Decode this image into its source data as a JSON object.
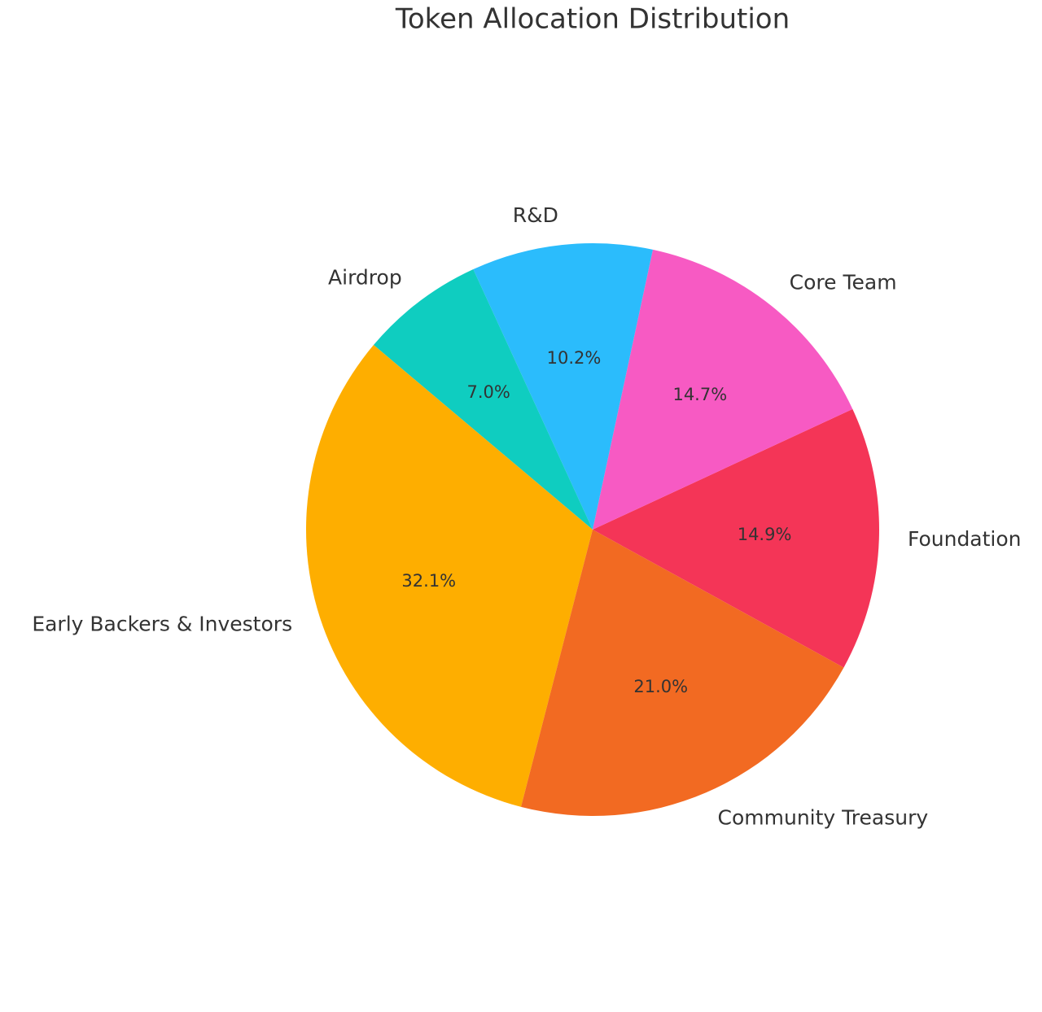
{
  "chart_data": {
    "type": "pie",
    "title": "Token Allocation Distribution",
    "categories": [
      "Foundation",
      "Core Team",
      "R&D",
      "Airdrop",
      "Early Backers & Investors",
      "Community Treasury"
    ],
    "values": [
      14.9,
      14.7,
      10.2,
      7.0,
      32.1,
      21.0
    ],
    "value_labels": [
      "14.9%",
      "14.7%",
      "10.2%",
      "7.0%",
      "32.1%",
      "21.0%"
    ],
    "colors": [
      "#f43557",
      "#f75ac3",
      "#2bbcfc",
      "#0fcdc0",
      "#feae00",
      "#f26a22"
    ]
  }
}
